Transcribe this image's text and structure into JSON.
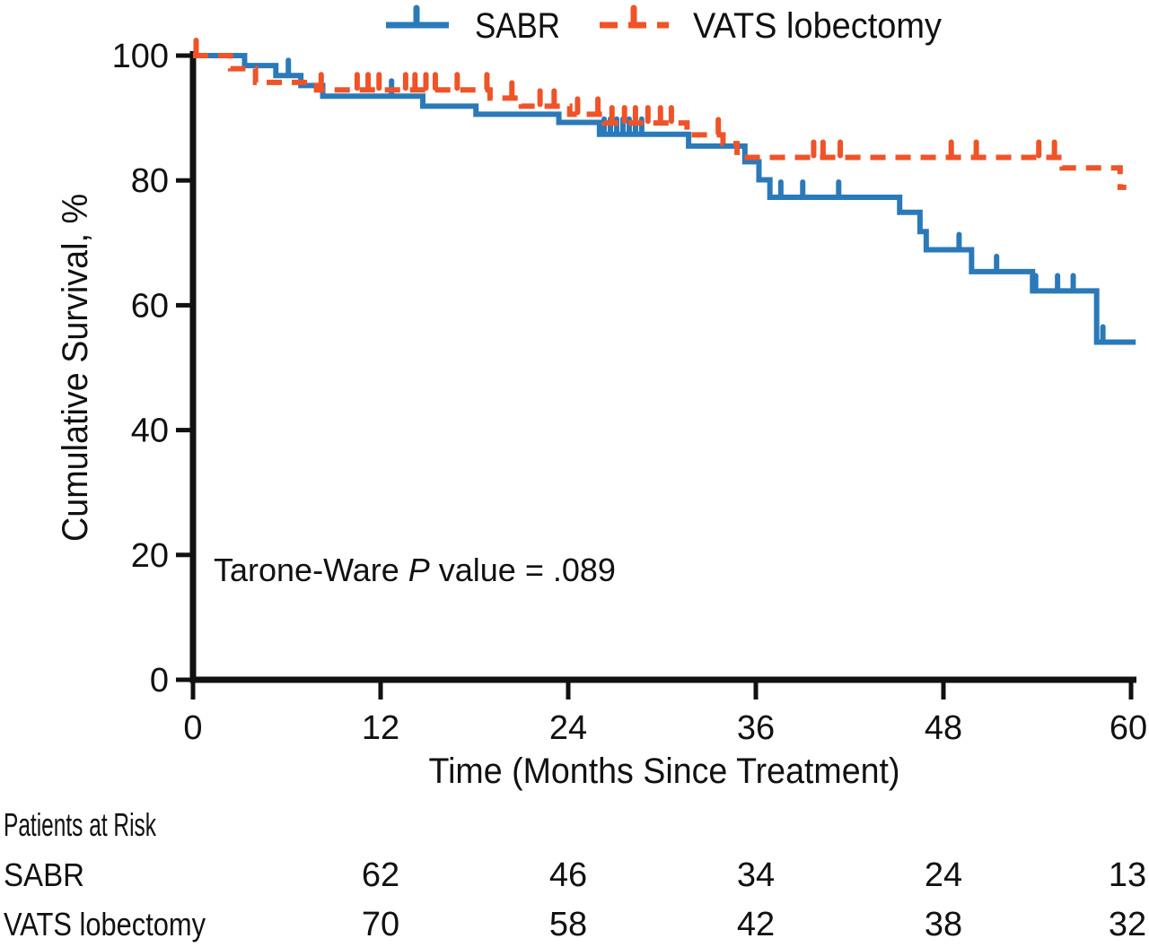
{
  "figure": {
    "background": "#ffffff",
    "text_color": "#111111"
  },
  "legend": {
    "position": "top",
    "items": [
      {
        "label": "SABR",
        "color": "#2A7ABA",
        "line_style": "solid",
        "marker": "censor-tick"
      },
      {
        "label": "VATS lobectomy",
        "color": "#EF5327",
        "line_style": "dashed",
        "marker": "censor-tick"
      }
    ]
  },
  "annotation": {
    "prefix": "Tarone-Ware ",
    "italic": "P",
    "suffix": " value = .089"
  },
  "axes": {
    "x": {
      "label": "Time (Months Since Treatment)",
      "ticks": [
        0,
        12,
        24,
        36,
        48,
        60
      ],
      "min": 0,
      "max": 60
    },
    "y": {
      "label": "Cumulative Survival, %",
      "ticks": [
        0,
        20,
        40,
        60,
        80,
        100
      ],
      "min": 0,
      "max": 100
    }
  },
  "chart_data": {
    "type": "line",
    "subtype": "kaplan-meier-step",
    "title": "",
    "xlabel": "Time (Months Since Treatment)",
    "ylabel": "Cumulative Survival, %",
    "x_range": [
      0,
      60
    ],
    "y_range": [
      0,
      100
    ],
    "grid": false,
    "legend_position": "top",
    "p_value_text": "Tarone-Ware P value = .089",
    "series": [
      {
        "name": "SABR",
        "color": "#2A7ABA",
        "line": "solid",
        "steps": [
          [
            0,
            100
          ],
          [
            3.3,
            98.4
          ],
          [
            5.3,
            96.8
          ],
          [
            6.9,
            95.2
          ],
          [
            8.3,
            93.5
          ],
          [
            14.7,
            91.9
          ],
          [
            18.1,
            90.6
          ],
          [
            23.4,
            89.3
          ],
          [
            26.0,
            87.4
          ],
          [
            31.7,
            85.5
          ],
          [
            35.3,
            83.0
          ],
          [
            36.2,
            80.1
          ],
          [
            36.9,
            77.3
          ],
          [
            45.2,
            74.9
          ],
          [
            46.5,
            71.8
          ],
          [
            46.9,
            68.9
          ],
          [
            49.8,
            65.4
          ],
          [
            53.7,
            62.3
          ],
          [
            57.8,
            54.1
          ]
        ],
        "end_month": 60.3,
        "censors": [
          [
            6.1,
            96.8
          ],
          [
            12.7,
            93.5
          ],
          [
            26.3,
            87.4
          ],
          [
            26.7,
            87.4
          ],
          [
            27.1,
            87.4
          ],
          [
            27.5,
            87.4
          ],
          [
            27.9,
            87.4
          ],
          [
            28.3,
            87.4
          ],
          [
            28.7,
            87.4
          ],
          [
            37.6,
            77.3
          ],
          [
            39.0,
            77.3
          ],
          [
            41.3,
            77.3
          ],
          [
            49.0,
            68.9
          ],
          [
            51.4,
            65.4
          ],
          [
            53.9,
            62.3
          ],
          [
            55.3,
            62.3
          ],
          [
            56.3,
            62.3
          ],
          [
            58.2,
            54.1
          ]
        ]
      },
      {
        "name": "VATS lobectomy",
        "color": "#EF5327",
        "line": "dashed",
        "steps": [
          [
            0,
            100
          ],
          [
            2.4,
            97.9
          ],
          [
            4.0,
            95.7
          ],
          [
            7.9,
            94.5
          ],
          [
            19.0,
            93.2
          ],
          [
            21.0,
            91.9
          ],
          [
            24.1,
            90.6
          ],
          [
            26.3,
            89.2
          ],
          [
            31.6,
            87.3
          ],
          [
            33.9,
            85.9
          ],
          [
            34.8,
            83.7
          ],
          [
            55.6,
            82.0
          ],
          [
            59.3,
            78.9
          ]
        ],
        "end_month": 59.7,
        "censors": [
          [
            0.2,
            100
          ],
          [
            8.2,
            94.5
          ],
          [
            10.5,
            94.5
          ],
          [
            11.2,
            94.5
          ],
          [
            11.9,
            94.5
          ],
          [
            13.6,
            94.5
          ],
          [
            14.2,
            94.5
          ],
          [
            14.9,
            94.5
          ],
          [
            15.5,
            94.5
          ],
          [
            16.9,
            94.5
          ],
          [
            18.8,
            94.5
          ],
          [
            20.4,
            93.2
          ],
          [
            22.2,
            91.9
          ],
          [
            23.1,
            91.9
          ],
          [
            24.6,
            90.6
          ],
          [
            25.9,
            90.6
          ],
          [
            26.8,
            89.2
          ],
          [
            27.6,
            89.2
          ],
          [
            28.3,
            89.2
          ],
          [
            29.1,
            89.2
          ],
          [
            29.9,
            89.2
          ],
          [
            30.6,
            89.2
          ],
          [
            33.6,
            87.3
          ],
          [
            39.7,
            83.7
          ],
          [
            40.3,
            83.7
          ],
          [
            41.4,
            83.7
          ],
          [
            48.5,
            83.7
          ],
          [
            50.1,
            83.7
          ],
          [
            54.1,
            83.7
          ],
          [
            55.1,
            83.7
          ]
        ]
      }
    ]
  },
  "risk_table": {
    "title": "Patients at Risk",
    "time_points": [
      12,
      24,
      36,
      48,
      60
    ],
    "rows": [
      {
        "label": "SABR",
        "counts": [
          62,
          46,
          34,
          24,
          13
        ]
      },
      {
        "label": "VATS lobectomy",
        "counts": [
          70,
          58,
          42,
          38,
          32
        ]
      }
    ]
  }
}
